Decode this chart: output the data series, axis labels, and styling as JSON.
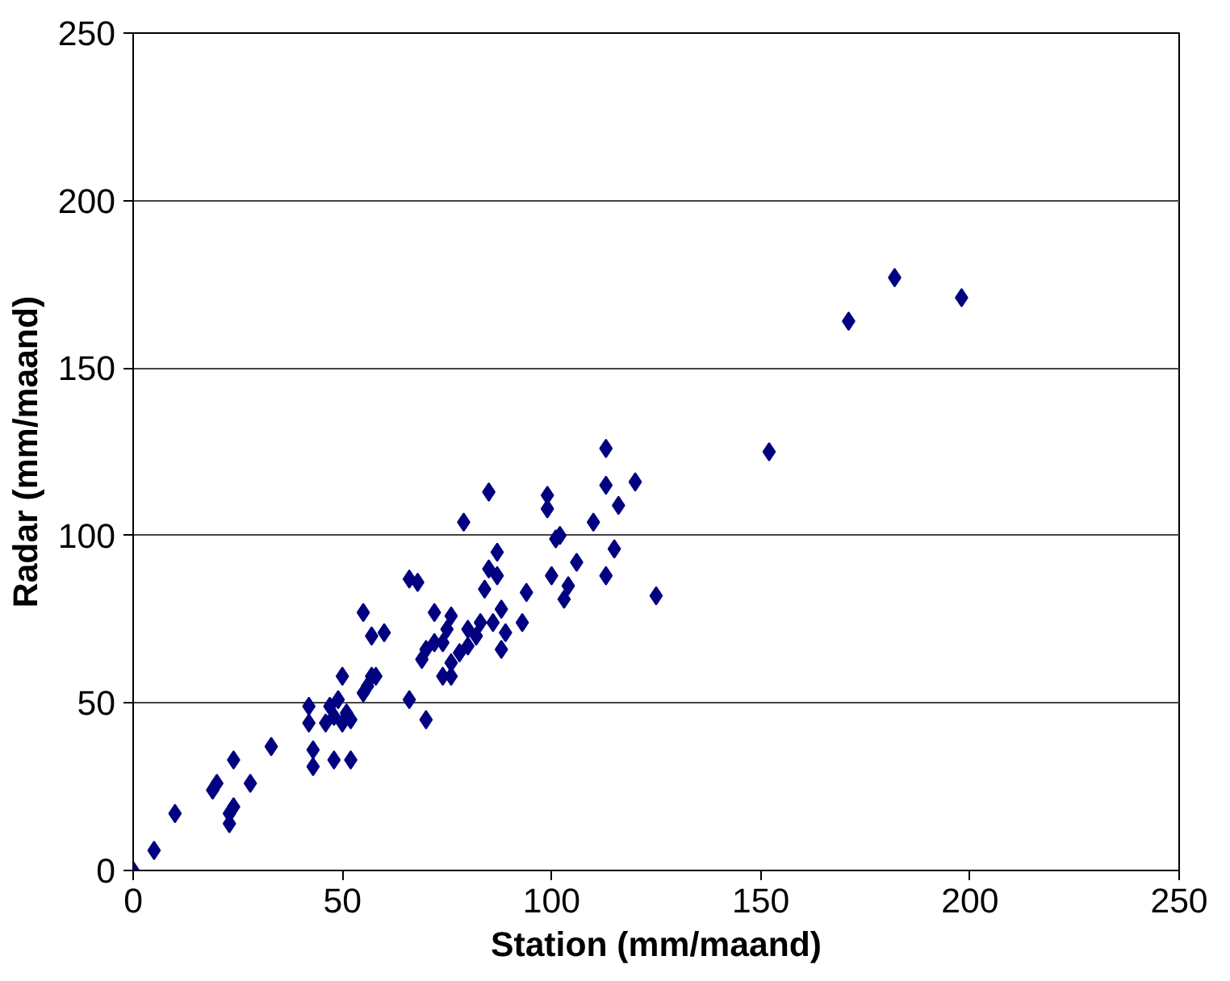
{
  "chart_data": {
    "type": "scatter",
    "xlabel": "Station (mm/maand)",
    "ylabel": "Radar (mm/maand)",
    "xlim": [
      0,
      250
    ],
    "ylim": [
      0,
      250
    ],
    "xticks": [
      0,
      50,
      100,
      150,
      200,
      250
    ],
    "yticks": [
      0,
      50,
      100,
      150,
      200,
      250
    ],
    "grid": "y",
    "marker": "diamond",
    "series": [
      {
        "color": "#000080",
        "x": [
          0,
          5,
          10,
          19,
          20,
          23,
          23,
          24,
          24,
          28,
          33,
          42,
          42,
          43,
          43,
          46,
          47,
          48,
          48,
          49,
          50,
          50,
          51,
          52,
          52,
          55,
          55,
          56,
          57,
          57,
          58,
          60,
          66,
          66,
          68,
          69,
          70,
          70,
          72,
          72,
          74,
          74,
          75,
          76,
          76,
          76,
          78,
          79,
          80,
          80,
          82,
          83,
          84,
          85,
          85,
          86,
          87,
          87,
          88,
          88,
          89,
          93,
          94,
          99,
          99,
          100,
          101,
          102,
          103,
          104,
          106,
          110,
          113,
          113,
          113,
          115,
          116,
          120,
          125,
          152,
          171,
          182,
          198
        ],
        "values": [
          0,
          6,
          17,
          24,
          26,
          14,
          17,
          19,
          33,
          26,
          37,
          44,
          49,
          36,
          31,
          44,
          49,
          33,
          46,
          51,
          44,
          58,
          47,
          33,
          45,
          53,
          77,
          55,
          58,
          70,
          58,
          71,
          51,
          87,
          86,
          63,
          45,
          66,
          68,
          77,
          58,
          68,
          72,
          58,
          62,
          76,
          65,
          104,
          72,
          67,
          70,
          74,
          84,
          90,
          113,
          74,
          95,
          88,
          66,
          78,
          71,
          74,
          83,
          108,
          112,
          88,
          99,
          100,
          81,
          85,
          92,
          104,
          126,
          115,
          88,
          96,
          109,
          116,
          82,
          125,
          164,
          177,
          171
        ]
      }
    ]
  }
}
